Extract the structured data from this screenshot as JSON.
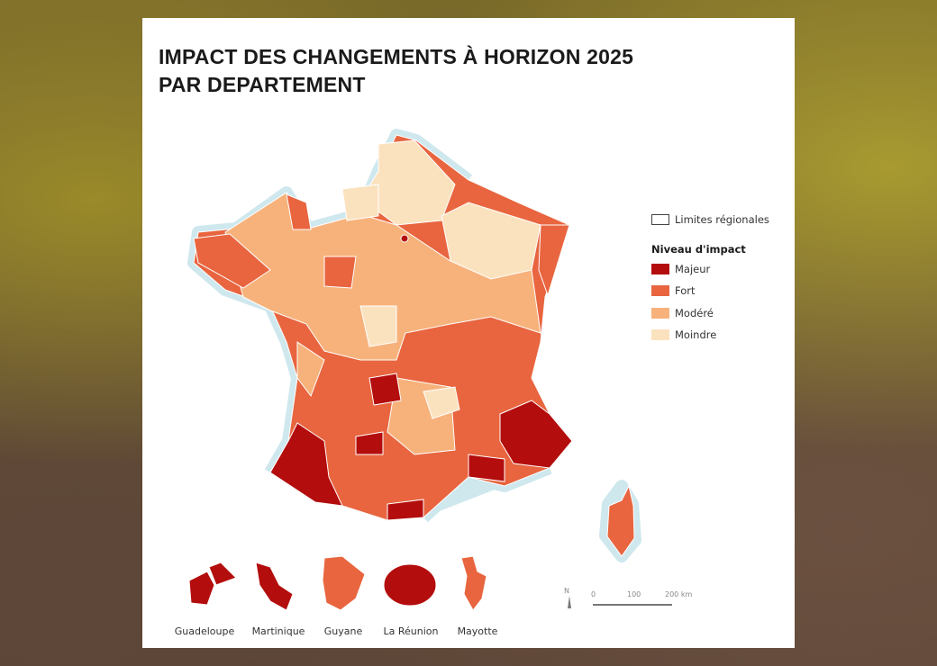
{
  "title_line1": "IMPACT DES CHANGEMENTS À HORIZON 2025",
  "title_line2": "PAR DEPARTEMENT",
  "legend": {
    "boundary_label": "Limites régionales",
    "heading": "Niveau d'impact",
    "items": [
      {
        "label": "Majeur",
        "color": "#b30d0d"
      },
      {
        "label": "Fort",
        "color": "#e8653f"
      },
      {
        "label": "Modéré",
        "color": "#f7b27c"
      },
      {
        "label": "Moindre",
        "color": "#fbe2bf"
      }
    ]
  },
  "overseas": [
    {
      "label": "Guadeloupe",
      "level": "Majeur"
    },
    {
      "label": "Martinique",
      "level": "Majeur"
    },
    {
      "label": "Guyane",
      "level": "Fort"
    },
    {
      "label": "La Réunion",
      "level": "Majeur"
    },
    {
      "label": "Mayotte",
      "level": "Fort"
    }
  ],
  "scale": {
    "north": "N",
    "ticks": [
      "0",
      "100",
      "200 km"
    ]
  }
}
